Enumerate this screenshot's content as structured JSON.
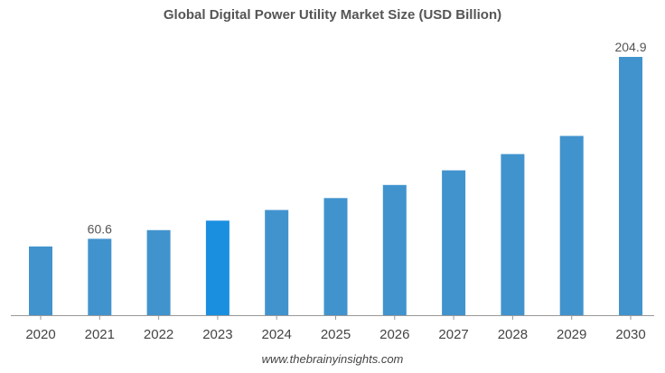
{
  "chart_data": {
    "type": "bar",
    "title": "Global Digital Power Utility Market Size (USD Billion)",
    "categories": [
      "2020",
      "2021",
      "2022",
      "2023",
      "2024",
      "2025",
      "2026",
      "2027",
      "2028",
      "2029",
      "2030"
    ],
    "values": [
      54.5,
      60.6,
      67.5,
      75.0,
      83.5,
      92.9,
      103.3,
      114.9,
      127.8,
      142.2,
      204.9
    ],
    "data_labels": [
      {
        "category": "2021",
        "text": "60.6"
      },
      {
        "category": "2030",
        "text": "204.9"
      }
    ],
    "highlight_category": "2023",
    "xlabel": "",
    "ylabel": "",
    "ylim": [
      0,
      230
    ],
    "grid": false,
    "legend": "none",
    "colors": {
      "bar": "#4193CE",
      "bar_highlight": "#1A8FE0",
      "axis": "#999999",
      "tick_text": "#444444",
      "label_text": "#555555"
    }
  },
  "footer": {
    "source": "www.thebrainyinsights.com"
  }
}
